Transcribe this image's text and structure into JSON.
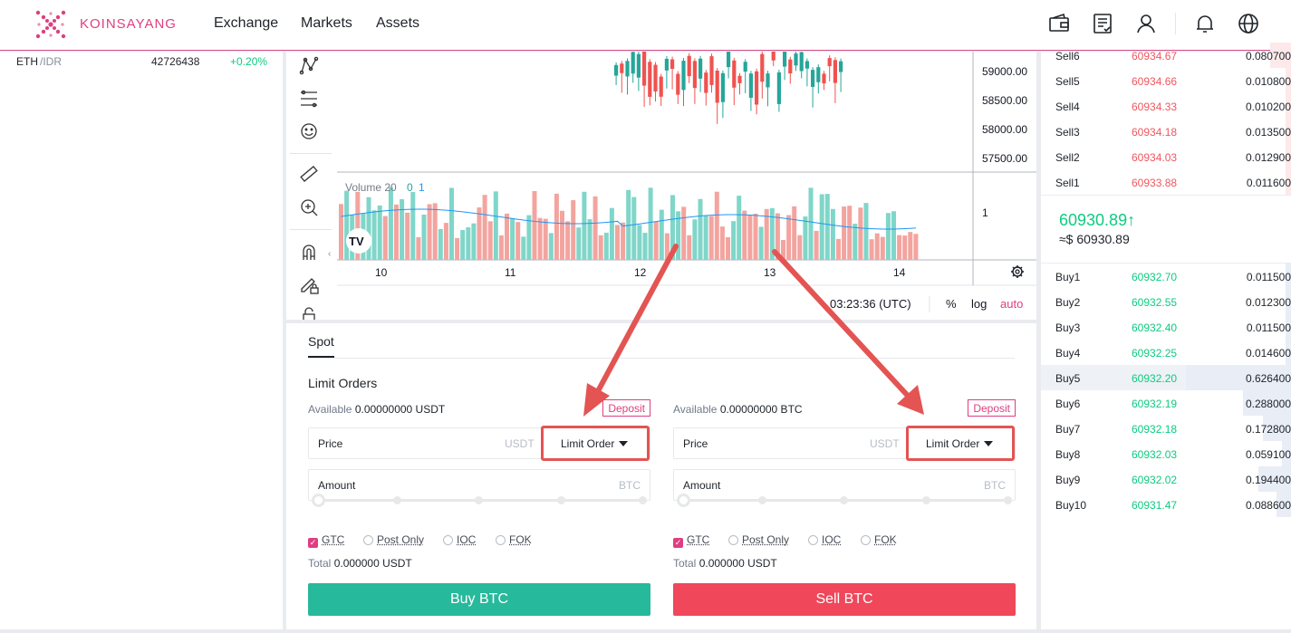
{
  "header": {
    "brand": "KOINSAYANG",
    "nav": [
      "Exchange",
      "Markets",
      "Assets"
    ],
    "icons": [
      "wallet-icon",
      "orders-icon",
      "user-icon",
      "bell-icon",
      "globe-icon"
    ]
  },
  "market_list": {
    "row": {
      "base": "ETH",
      "quote": "/IDR",
      "price": "42726438",
      "change": "+0.20%"
    }
  },
  "chart": {
    "price_ticks": [
      "59000.00",
      "58500.00",
      "58000.00",
      "57500.00"
    ],
    "volume_label": "Volume 20",
    "volume_values": [
      "0",
      "1"
    ],
    "volume_tick": "1",
    "x_ticks": [
      "10",
      "11",
      "12",
      "13",
      "14"
    ],
    "time": "03:23:36 (UTC)",
    "controls": [
      "%",
      "log",
      "auto"
    ],
    "tools": [
      "pattern-icon",
      "fib-icon",
      "emoji-icon",
      "ruler-icon",
      "zoom-in-icon",
      "magnet-icon",
      "lock-pencil-icon",
      "lock-icon"
    ]
  },
  "trade": {
    "tab": "Spot",
    "title": "Limit Orders",
    "buy": {
      "available_label": "Available",
      "available_value": "0.00000000 USDT",
      "deposit": "Deposit",
      "price_label": "Price",
      "price_unit": "USDT",
      "order_type": "Limit Order",
      "amount_label": "Amount",
      "amount_unit": "BTC",
      "tif": [
        "GTC",
        "Post Only",
        "IOC",
        "FOK"
      ],
      "total_label": "Total",
      "total_value": "0.000000 USDT",
      "button": "Buy BTC"
    },
    "sell": {
      "available_label": "Available",
      "available_value": "0.00000000 BTC",
      "deposit": "Deposit",
      "price_label": "Price",
      "price_unit": "USDT",
      "order_type": "Limit Order",
      "amount_label": "Amount",
      "amount_unit": "BTC",
      "tif": [
        "GTC",
        "Post Only",
        "IOC",
        "FOK"
      ],
      "total_label": "Total",
      "total_value": "0.000000 USDT",
      "button": "Sell BTC"
    }
  },
  "orderbook": {
    "sells": [
      {
        "name": "Sell6",
        "price": "60934.67",
        "amount": "0.080700",
        "depth": 0.2
      },
      {
        "name": "Sell5",
        "price": "60934.66",
        "amount": "0.010800",
        "depth": 0.03
      },
      {
        "name": "Sell4",
        "price": "60934.33",
        "amount": "0.010200",
        "depth": 0.03
      },
      {
        "name": "Sell3",
        "price": "60934.18",
        "amount": "0.013500",
        "depth": 0.03
      },
      {
        "name": "Sell2",
        "price": "60934.03",
        "amount": "0.012900",
        "depth": 0.03
      },
      {
        "name": "Sell1",
        "price": "60933.88",
        "amount": "0.011600",
        "depth": 0.03
      }
    ],
    "last_price": "60930.89",
    "last_arrow": "↑",
    "last_usd": "≈$ 60930.89",
    "buys": [
      {
        "name": "Buy1",
        "price": "60932.70",
        "amount": "0.011500",
        "depth": 0.03
      },
      {
        "name": "Buy2",
        "price": "60932.55",
        "amount": "0.012300",
        "depth": 0.03
      },
      {
        "name": "Buy3",
        "price": "60932.40",
        "amount": "0.011500",
        "depth": 0.03
      },
      {
        "name": "Buy4",
        "price": "60932.25",
        "amount": "0.014600",
        "depth": 0.03
      },
      {
        "name": "Buy5",
        "price": "60932.20",
        "amount": "0.626400",
        "depth": 1.0
      },
      {
        "name": "Buy6",
        "price": "60932.19",
        "amount": "0.288000",
        "depth": 0.46
      },
      {
        "name": "Buy7",
        "price": "60932.18",
        "amount": "0.172800",
        "depth": 0.27
      },
      {
        "name": "Buy8",
        "price": "60932.03",
        "amount": "0.059100",
        "depth": 0.09
      },
      {
        "name": "Buy9",
        "price": "60932.02",
        "amount": "0.194400",
        "depth": 0.31
      },
      {
        "name": "Buy10",
        "price": "60931.47",
        "amount": "0.088600",
        "depth": 0.14
      }
    ]
  },
  "colors": {
    "brand": "#df3e80",
    "up": "#0ecb81",
    "down": "#f0565f",
    "buy_btn": "#27b99b",
    "sell_btn": "#f0475a",
    "annotation": "#e35453"
  }
}
